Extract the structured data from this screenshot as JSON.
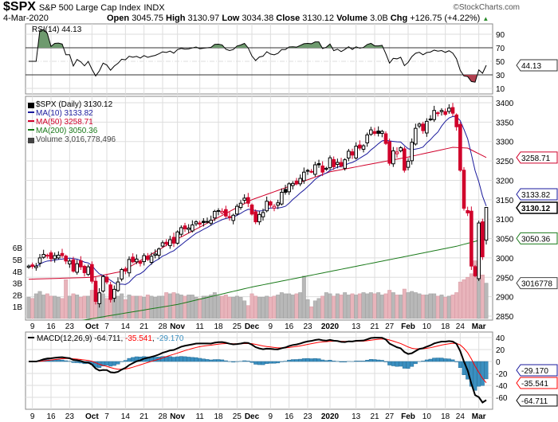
{
  "header": {
    "symbol": "$SPX",
    "name": "S&P 500 Large Cap Index",
    "exchange": "INDX",
    "date": "4-Mar-2020",
    "brand": "©StockCharts.com",
    "open_label": "Open",
    "open": "3045.75",
    "high_label": "High",
    "high": "3130.97",
    "low_label": "Low",
    "low": "3034.38",
    "close_label": "Close",
    "close": "3130.12",
    "volume_label": "Volume",
    "volume": "3.0B",
    "chg_label": "Chg",
    "chg": "+126.75 (+4.22%)",
    "chg_arrow": "▲"
  },
  "colors": {
    "up": "#000000",
    "down": "#d0002a",
    "ma10": "#1a1a9c",
    "ma50": "#d0002a",
    "ma200": "#1a7a1a",
    "vol_up": "#b8b8b8",
    "vol_down": "#e8b4bb",
    "macd": "#000000",
    "signal": "#ff0000",
    "hist": "#3a8fc0",
    "rsi_fill_hi": "#6e9a6e",
    "rsi_fill_lo": "#b04050"
  },
  "chart_data": [
    {
      "type": "line",
      "title": "RSI(14) 44.13",
      "legend": "RSI(14) 44.13",
      "ylim": [
        0,
        100
      ],
      "ticks": [
        "90",
        "70",
        "50",
        "30",
        "10"
      ],
      "tag": "44.13"
    },
    {
      "type": "candlestick",
      "title": "$SPX (Daily) 3130.12",
      "legend": [
        "$SPX (Daily) 3130.12",
        "MA(10) 3133.82",
        "MA(50) 3258.71",
        "MA(200) 3050.36",
        "Volume 3,016,778,496"
      ],
      "ylim": [
        2835,
        3410
      ],
      "price_ticks": [
        "3400",
        "3350",
        "3300",
        "3250",
        "3200",
        "3150",
        "3100",
        "3050",
        "3000",
        "2950",
        "2900",
        "2850"
      ],
      "volume_ticks": [
        "6B",
        "5B",
        "4B",
        "3B",
        "2B",
        "1B"
      ],
      "tags": {
        "ma50": "3258.71",
        "ma10": "3133.82",
        "close": "3130.12",
        "ma200": "3050.36",
        "volume": "3016778"
      },
      "close": [
        2979,
        2978,
        2979,
        3000,
        3009,
        3007,
        2998,
        3006,
        3007,
        3006,
        2992,
        2992,
        2966,
        2985,
        2977,
        2962,
        2977,
        2940,
        2888,
        2910,
        2952,
        2938,
        2893,
        2919,
        2938,
        2970,
        2966,
        2996,
        2990,
        2997,
        2986,
        3006,
        2996,
        3004,
        3010,
        3023,
        3039,
        3036,
        3047,
        3038,
        3067,
        3078,
        3075,
        3077,
        3085,
        3093,
        3087,
        3091,
        3094,
        3097,
        3120,
        3122,
        3120,
        3108,
        3104,
        3110,
        3133,
        3141,
        3154,
        3141,
        3113,
        3093,
        3112,
        3117,
        3146,
        3136,
        3133,
        3142,
        3169,
        3169,
        3191,
        3192,
        3191,
        3205,
        3221,
        3224,
        3223,
        3240,
        3240,
        3221,
        3231,
        3258,
        3235,
        3246,
        3237,
        3253,
        3275,
        3265,
        3288,
        3283,
        3289,
        3317,
        3330,
        3321,
        3321,
        3326,
        3295,
        3244,
        3276,
        3273,
        3284,
        3226,
        3249,
        3298,
        3334,
        3345,
        3328,
        3352,
        3358,
        3380,
        3374,
        3380,
        3370,
        3386,
        3373,
        3338,
        3226,
        3128,
        3116,
        2979,
        2954,
        3090,
        3003,
        3130.12
      ],
      "volume_b": [
        1.8,
        1.7,
        2.1,
        2.3,
        2.0,
        2.1,
        1.9,
        1.9,
        1.8,
        1.7,
        3.3,
        1.9,
        2.1,
        2.0,
        1.8,
        1.9,
        1.9,
        2.4,
        2.8,
        2.2,
        2.1,
        1.7,
        2.1,
        1.8,
        1.9,
        2.1,
        1.6,
        2.0,
        1.9,
        1.9,
        1.9,
        1.8,
        2.0,
        1.9,
        1.8,
        1.9,
        1.9,
        2.2,
        2.1,
        2.2,
        2.1,
        2.0,
        1.9,
        2.0,
        2.0,
        1.8,
        1.7,
        1.9,
        1.9,
        2.0,
        2.2,
        1.9,
        1.9,
        2.0,
        1.8,
        1.8,
        1.9,
        1.8,
        1.5,
        1.1,
        2.1,
        1.9,
        1.8,
        1.8,
        1.9,
        1.8,
        1.9,
        2.0,
        2.2,
        2.1,
        2.1,
        2.0,
        2.1,
        2.2,
        3.6,
        1.6,
        1.0,
        1.5,
        1.7,
        1.9,
        2.2,
        2.1,
        1.9,
        2.1,
        2.0,
        2.2,
        2.0,
        2.1,
        2.0,
        2.1,
        2.2,
        2.1,
        2.2,
        2.1,
        2.2,
        2.0,
        2.1,
        2.4,
        2.2,
        2.0,
        2.0,
        2.5,
        2.2,
        2.3,
        2.2,
        2.1,
        2.0,
        2.0,
        2.1,
        2.1,
        1.9,
        2.0,
        1.8,
        1.9,
        2.0,
        2.2,
        3.1,
        3.3,
        3.5,
        3.8,
        4.9,
        3.9,
        3.7,
        3.0
      ],
      "ma50": [
        [
          0,
          2945
        ],
        [
          17,
          2950
        ],
        [
          25,
          2965
        ],
        [
          40,
          3049
        ],
        [
          60,
          3150
        ],
        [
          81,
          3222
        ],
        [
          102,
          3260
        ],
        [
          114,
          3285
        ],
        [
          118,
          3283
        ],
        [
          123,
          3258.71
        ]
      ],
      "ma200": [
        [
          0,
          2815
        ],
        [
          21,
          2850
        ],
        [
          40,
          2880
        ],
        [
          60,
          2925
        ],
        [
          81,
          2965
        ],
        [
          102,
          3005
        ],
        [
          115,
          3030
        ],
        [
          123,
          3050.36
        ]
      ]
    },
    {
      "type": "line",
      "title": "MACD(12,26,9)",
      "legend": {
        "label": "MACD(12,26,9)",
        "macd": "-64.711",
        "signal": "-35.541",
        "hist": "-29.170"
      },
      "ylim": [
        -70,
        48
      ],
      "ticks": [
        "40",
        "20",
        "0",
        "-20",
        "-40",
        "-60"
      ],
      "tags": {
        "hist": "-29.170",
        "signal": "-35.541",
        "macd": "-64.711"
      }
    }
  ],
  "x_axis": [
    [
      "9",
      1,
      0
    ],
    [
      "16",
      6,
      0
    ],
    [
      "23",
      11,
      0
    ],
    [
      "Oct",
      17,
      1
    ],
    [
      "7",
      21,
      0
    ],
    [
      "14",
      26,
      0
    ],
    [
      "21",
      31,
      0
    ],
    [
      "28",
      36,
      0
    ],
    [
      "Nov",
      40,
      1
    ],
    [
      "11",
      46,
      0
    ],
    [
      "18",
      51,
      0
    ],
    [
      "25",
      56,
      0
    ],
    [
      "Dec",
      60,
      1
    ],
    [
      "9",
      65,
      0
    ],
    [
      "16",
      70,
      0
    ],
    [
      "23",
      75,
      0
    ],
    [
      "2020",
      81,
      1
    ],
    [
      "13",
      88,
      0
    ],
    [
      "21",
      93,
      0
    ],
    [
      "27",
      97,
      0
    ],
    [
      "Feb",
      102,
      1
    ],
    [
      "10",
      107,
      0
    ],
    [
      "18",
      112,
      0
    ],
    [
      "24",
      116,
      0
    ],
    [
      "Mar",
      121,
      1
    ]
  ]
}
